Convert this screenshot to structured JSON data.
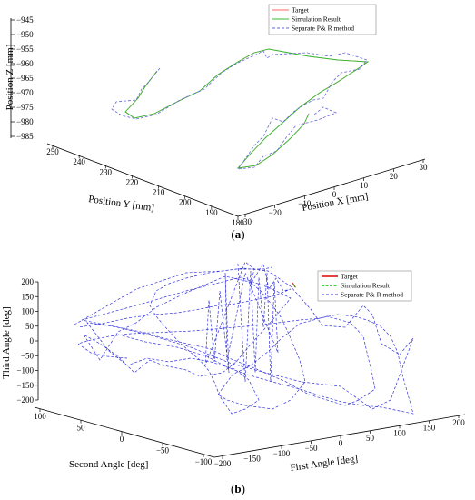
{
  "chart_data": [
    {
      "type": "line",
      "projection": "3d",
      "caption": "(a)",
      "xlabel": "Position X [mm]",
      "ylabel": "Position Y [mm]",
      "zlabel": "Position Z [mm]",
      "x_ticks": [
        "−30",
        "−20",
        "−10",
        "0",
        "10",
        "20",
        "30"
      ],
      "y_ticks": [
        "180",
        "190",
        "200",
        "210",
        "220",
        "230",
        "240",
        "250"
      ],
      "z_ticks": [
        "−945",
        "−950",
        "−955",
        "−960",
        "−965",
        "−970",
        "−975",
        "−980",
        "−985"
      ],
      "xlim": [
        -30,
        30
      ],
      "ylim": [
        180,
        250
      ],
      "zlim": [
        -985,
        -945
      ],
      "legend_position": "top-right",
      "series": [
        {
          "name": "Target",
          "color": "#ff6666",
          "style": "solid"
        },
        {
          "name": "Simulation Result",
          "color": "#33bb33",
          "style": "solid"
        },
        {
          "name": "Separate P& R method",
          "color": "#6666dd",
          "style": "dashed"
        }
      ]
    },
    {
      "type": "line",
      "projection": "3d",
      "caption": "(b)",
      "xlabel": "First Angle [deg]",
      "ylabel": "Second Angle [deg]",
      "zlabel": "Third Angle [deg]",
      "x_ticks": [
        "−200",
        "−150",
        "−100",
        "−50",
        "0",
        "50",
        "100",
        "150",
        "200"
      ],
      "y_ticks": [
        "−100",
        "−50",
        "0",
        "50",
        "100"
      ],
      "z_ticks": [
        "200",
        "150",
        "100",
        "50",
        "0",
        "−50",
        "−100",
        "−150",
        "−200"
      ],
      "xlim": [
        -200,
        200
      ],
      "ylim": [
        -100,
        100
      ],
      "zlim": [
        -200,
        200
      ],
      "legend_position": "top-right",
      "series": [
        {
          "name": "Target",
          "color": "#dd0000",
          "style": "solid"
        },
        {
          "name": "Simulation Result",
          "color": "#00bb00",
          "style": "dashed"
        },
        {
          "name": "Separate P& R method",
          "color": "#3333dd",
          "style": "dashed"
        }
      ]
    }
  ]
}
